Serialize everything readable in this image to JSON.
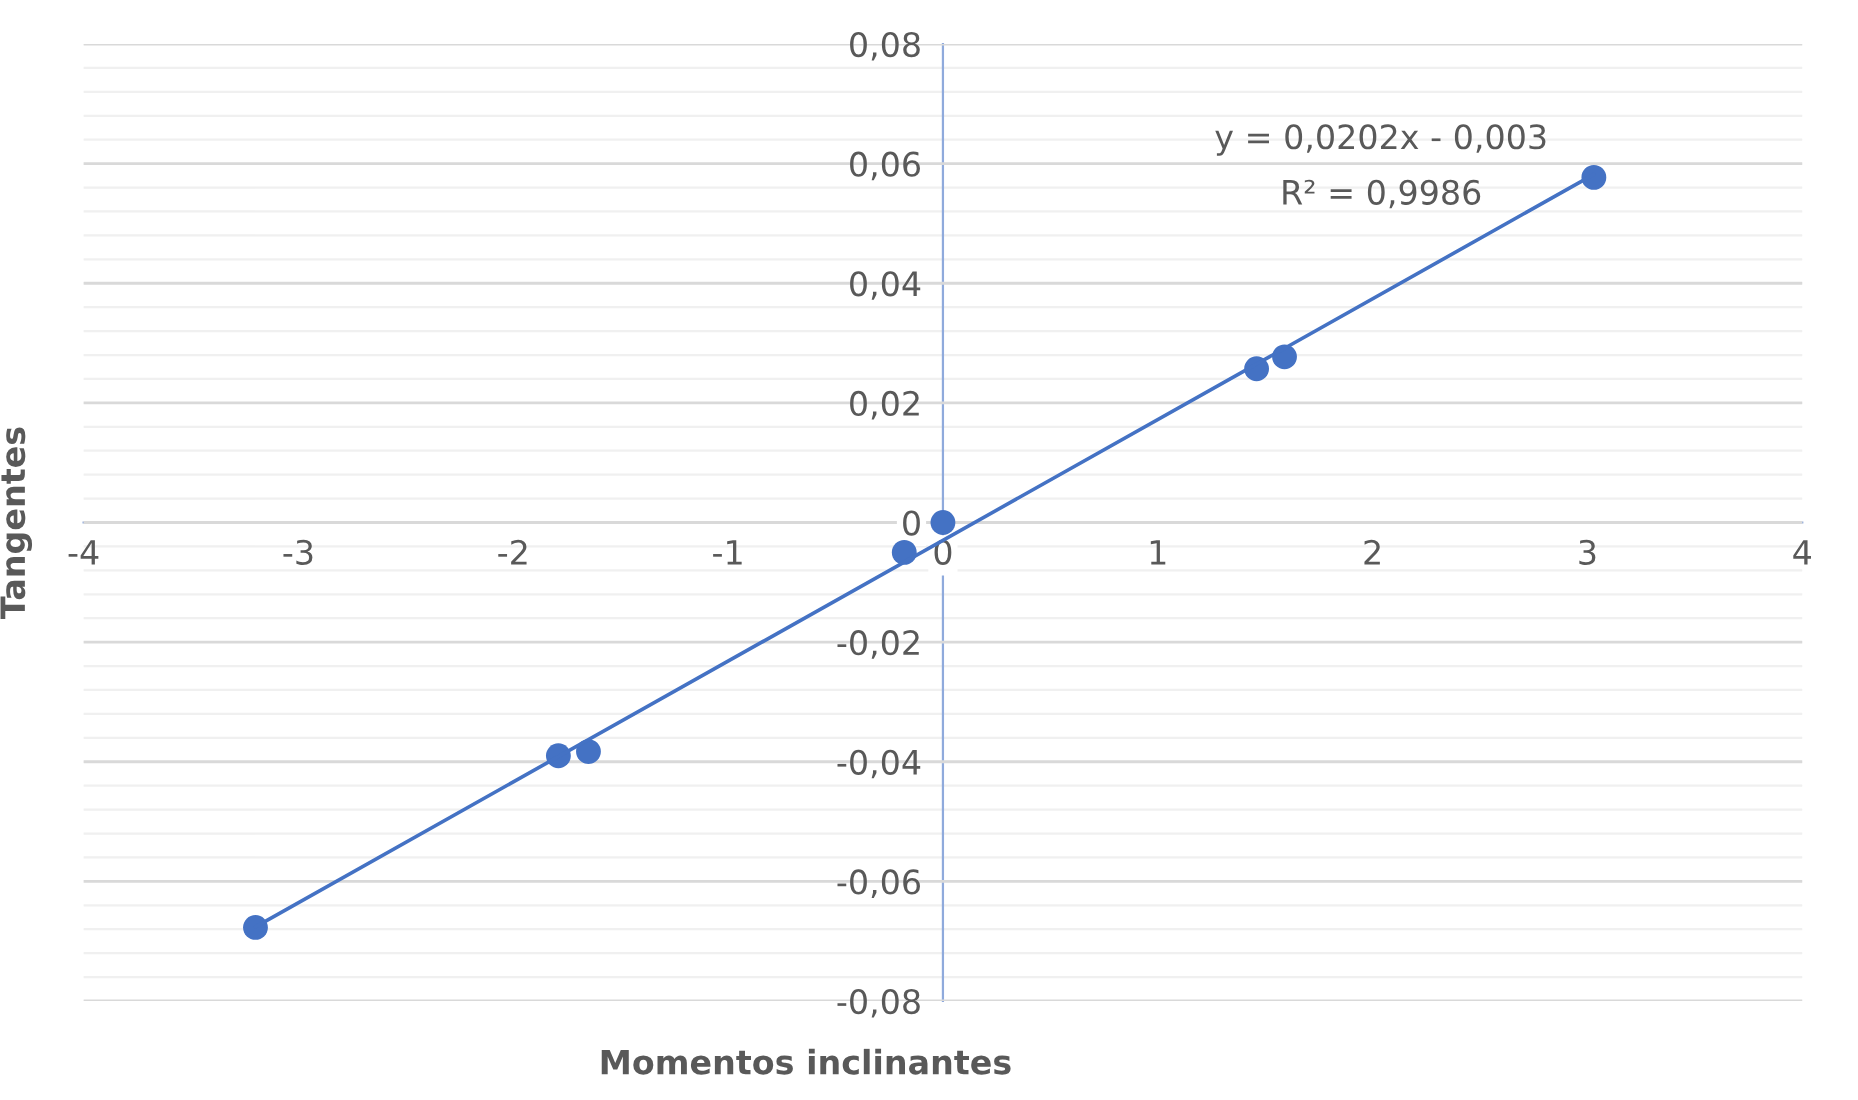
{
  "chart_data": {
    "type": "scatter",
    "xlabel": "Momentos inclinantes",
    "ylabel": "Tangentes",
    "annotations": [
      "y = 0,0202x - 0,003",
      "R² = 0,9986"
    ],
    "series": [
      {
        "color": "#4472c4",
        "x": [
          -3.2,
          -1.79,
          -1.65,
          -0.18,
          0,
          1.46,
          1.59,
          3.03
        ],
        "values": [
          -0.0677,
          -0.039,
          -0.0383,
          -0.005,
          0,
          0.0257,
          0.0277,
          0.0577
        ],
        "marker": "circle"
      },
      {
        "type": "line",
        "color": "#4472c4",
        "x": [
          -3.2,
          3.03
        ],
        "values": [
          -0.0676,
          0.0582
        ],
        "marker": "none",
        "line_style": "solid"
      }
    ],
    "xlim": [
      -4,
      4
    ],
    "xticks": [
      -4,
      -3,
      -2,
      -1,
      0,
      1,
      2,
      3,
      4
    ],
    "ylim": [
      -0.08,
      0.08
    ],
    "yticks": [
      {
        "value": -0.08,
        "label": "-0,08"
      },
      {
        "value": -0.06,
        "label": "-0,06"
      },
      {
        "value": -0.04,
        "label": "-0,04"
      },
      {
        "value": -0.02,
        "label": "-0,02"
      },
      {
        "value": 0,
        "label": "0"
      },
      {
        "value": 0.02,
        "label": "0,02"
      },
      {
        "value": 0.04,
        "label": "0,04"
      },
      {
        "value": 0.06,
        "label": "0,06"
      },
      {
        "value": 0.08,
        "label": "0,08"
      }
    ],
    "grid": "y",
    "legend": false
  }
}
